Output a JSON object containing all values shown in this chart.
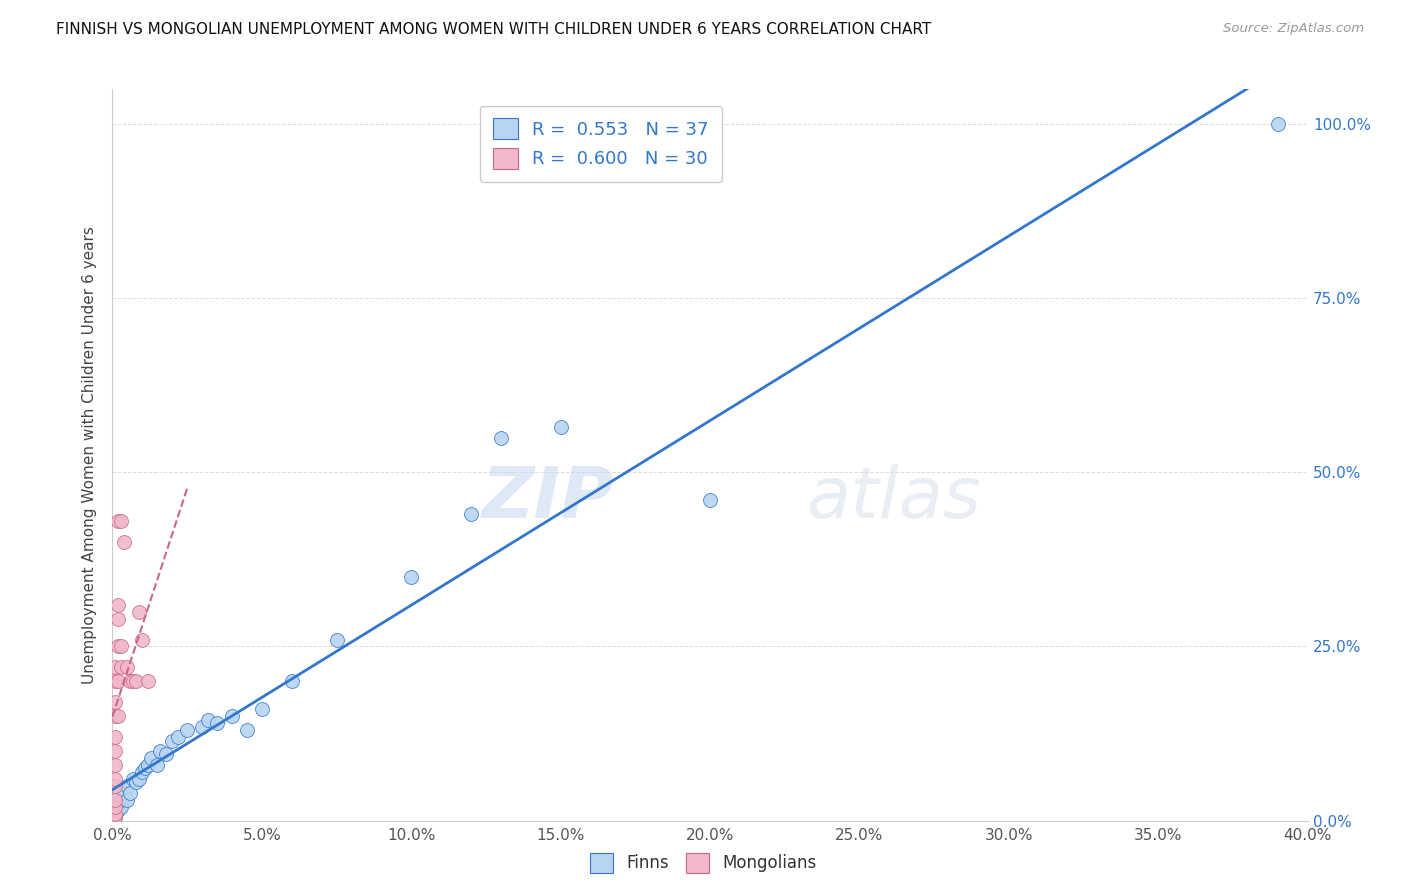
{
  "title": "FINNISH VS MONGOLIAN UNEMPLOYMENT AMONG WOMEN WITH CHILDREN UNDER 6 YEARS CORRELATION CHART",
  "source": "Source: ZipAtlas.com",
  "ylabel": "Unemployment Among Women with Children Under 6 years",
  "xlim": [
    0,
    0.4
  ],
  "ylim": [
    0,
    1.05
  ],
  "r_finns": 0.553,
  "n_finns": 37,
  "r_mongolians": 0.6,
  "n_mongolians": 30,
  "finns_color": "#b8d4f0",
  "mongolians_color": "#f0b8c8",
  "trendline_finns_color": "#3377cc",
  "trendline_mongolians_color": "#cc6688",
  "watermark_zip": "ZIP",
  "watermark_atlas": "atlas",
  "finns_x": [
    0.001,
    0.001,
    0.002,
    0.002,
    0.003,
    0.003,
    0.004,
    0.005,
    0.005,
    0.006,
    0.007,
    0.008,
    0.009,
    0.01,
    0.011,
    0.012,
    0.013,
    0.015,
    0.016,
    0.018,
    0.02,
    0.022,
    0.025,
    0.03,
    0.032,
    0.035,
    0.04,
    0.045,
    0.05,
    0.06,
    0.075,
    0.1,
    0.12,
    0.13,
    0.15,
    0.2,
    0.39
  ],
  "finns_y": [
    0.005,
    0.01,
    0.015,
    0.025,
    0.02,
    0.03,
    0.04,
    0.03,
    0.05,
    0.04,
    0.06,
    0.055,
    0.06,
    0.07,
    0.075,
    0.08,
    0.09,
    0.08,
    0.1,
    0.095,
    0.115,
    0.12,
    0.13,
    0.135,
    0.145,
    0.14,
    0.15,
    0.13,
    0.16,
    0.2,
    0.26,
    0.35,
    0.44,
    0.55,
    0.565,
    0.46,
    1.0
  ],
  "mongolians_x": [
    0.001,
    0.001,
    0.001,
    0.001,
    0.001,
    0.001,
    0.001,
    0.001,
    0.001,
    0.001,
    0.001,
    0.001,
    0.001,
    0.002,
    0.002,
    0.002,
    0.002,
    0.002,
    0.002,
    0.003,
    0.003,
    0.003,
    0.004,
    0.005,
    0.006,
    0.007,
    0.008,
    0.009,
    0.01,
    0.012
  ],
  "mongolians_y": [
    0.005,
    0.01,
    0.02,
    0.03,
    0.05,
    0.06,
    0.08,
    0.1,
    0.12,
    0.15,
    0.17,
    0.2,
    0.22,
    0.15,
    0.2,
    0.25,
    0.29,
    0.31,
    0.43,
    0.22,
    0.25,
    0.43,
    0.4,
    0.22,
    0.2,
    0.2,
    0.2,
    0.3,
    0.26,
    0.2
  ],
  "mongolian_trendline_x_end": 0.025,
  "title_fontsize": 11,
  "source_fontsize": 9.5,
  "axis_fontsize": 11,
  "ylabel_fontsize": 11
}
